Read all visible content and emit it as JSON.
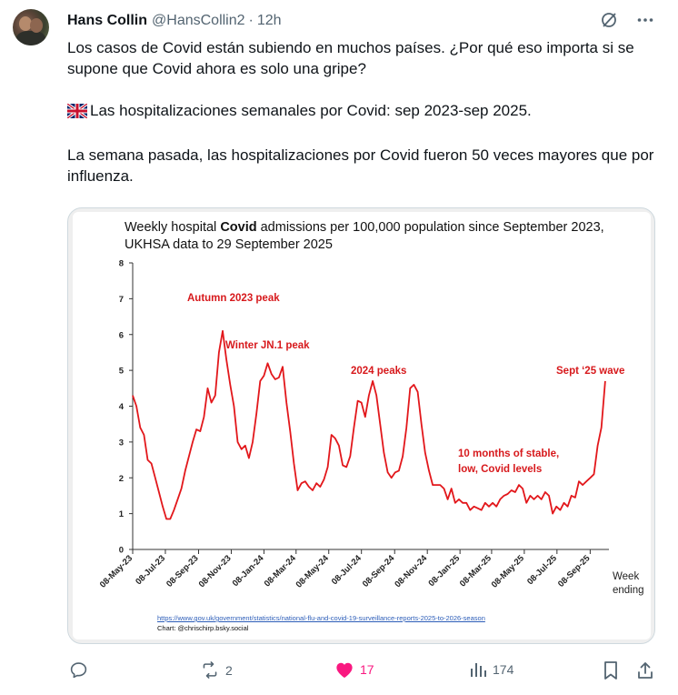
{
  "author": {
    "name": "Hans Collin",
    "handle": "@HansCollin2",
    "separator": "·",
    "time": "12h"
  },
  "tweet": {
    "line1": "Los casos de Covid están subiendo en muchos países. ¿Por qué eso importa si se supone que Covid ahora es solo una gripe?",
    "line2": "Las hospitalizaciones semanales por Covid: sep 2023-sep 2025.",
    "line3": "La semana pasada, las hospitalizaciones por Covid fueron 50 veces mayores que por influenza."
  },
  "chart_data": {
    "type": "line",
    "title_pre": "Weekly hospital ",
    "title_bold": "Covid",
    "title_post": " admissions per 100,000 population since September 2023, UKHSA data to 29 September 2025",
    "xlabel": "Week ending",
    "xlabel_line1": "Week",
    "xlabel_line2": "ending",
    "ylabel": "",
    "ylim": [
      0,
      8
    ],
    "y_ticks": [
      "0",
      "1",
      "2",
      "3",
      "4",
      "5",
      "6",
      "7",
      "8"
    ],
    "x_ticks": [
      "08-May-23",
      "08-Jul-23",
      "08-Sep-23",
      "08-Nov-23",
      "08-Jan-24",
      "08-Mar-24",
      "08-May-24",
      "08-Jul-24",
      "08-Sep-24",
      "08-Nov-24",
      "08-Jan-25",
      "08-Mar-25",
      "08-May-25",
      "08-Jul-25",
      "08-Sep-25"
    ],
    "x_start": "2023-05-08",
    "series": [
      {
        "color": "#e2171b",
        "points": [
          [
            "2023-05-08",
            4.3
          ],
          [
            "2023-05-15",
            4.0
          ],
          [
            "2023-05-22",
            3.4
          ],
          [
            "2023-05-29",
            3.2
          ],
          [
            "2023-06-05",
            2.5
          ],
          [
            "2023-06-12",
            2.4
          ],
          [
            "2023-06-19",
            2.0
          ],
          [
            "2023-06-26",
            1.6
          ],
          [
            "2023-07-03",
            1.2
          ],
          [
            "2023-07-10",
            0.85
          ],
          [
            "2023-07-17",
            0.85
          ],
          [
            "2023-07-24",
            1.1
          ],
          [
            "2023-07-31",
            1.4
          ],
          [
            "2023-08-07",
            1.7
          ],
          [
            "2023-08-14",
            2.2
          ],
          [
            "2023-08-21",
            2.6
          ],
          [
            "2023-08-28",
            3.0
          ],
          [
            "2023-09-04",
            3.35
          ],
          [
            "2023-09-11",
            3.3
          ],
          [
            "2023-09-18",
            3.7
          ],
          [
            "2023-09-25",
            4.5
          ],
          [
            "2023-10-02",
            4.1
          ],
          [
            "2023-10-09",
            4.3
          ],
          [
            "2023-10-16",
            5.5
          ],
          [
            "2023-10-23",
            6.1
          ],
          [
            "2023-10-30",
            5.3
          ],
          [
            "2023-11-06",
            4.6
          ],
          [
            "2023-11-13",
            4.0
          ],
          [
            "2023-11-20",
            3.0
          ],
          [
            "2023-11-27",
            2.8
          ],
          [
            "2023-12-04",
            2.9
          ],
          [
            "2023-12-11",
            2.55
          ],
          [
            "2023-12-18",
            3.0
          ],
          [
            "2023-12-25",
            3.8
          ],
          [
            "2024-01-01",
            4.7
          ],
          [
            "2024-01-08",
            4.85
          ],
          [
            "2024-01-15",
            5.2
          ],
          [
            "2024-01-22",
            4.9
          ],
          [
            "2024-01-29",
            4.75
          ],
          [
            "2024-02-05",
            4.8
          ],
          [
            "2024-02-12",
            5.1
          ],
          [
            "2024-02-19",
            4.1
          ],
          [
            "2024-02-26",
            3.3
          ],
          [
            "2024-03-04",
            2.4
          ],
          [
            "2024-03-11",
            1.65
          ],
          [
            "2024-03-18",
            1.85
          ],
          [
            "2024-03-25",
            1.9
          ],
          [
            "2024-04-01",
            1.75
          ],
          [
            "2024-04-08",
            1.65
          ],
          [
            "2024-04-15",
            1.85
          ],
          [
            "2024-04-22",
            1.75
          ],
          [
            "2024-04-29",
            1.95
          ],
          [
            "2024-05-06",
            2.3
          ],
          [
            "2024-05-13",
            3.2
          ],
          [
            "2024-05-20",
            3.1
          ],
          [
            "2024-05-27",
            2.9
          ],
          [
            "2024-06-03",
            2.35
          ],
          [
            "2024-06-10",
            2.3
          ],
          [
            "2024-06-17",
            2.6
          ],
          [
            "2024-06-24",
            3.4
          ],
          [
            "2024-07-01",
            4.15
          ],
          [
            "2024-07-08",
            4.1
          ],
          [
            "2024-07-15",
            3.7
          ],
          [
            "2024-07-22",
            4.3
          ],
          [
            "2024-07-29",
            4.7
          ],
          [
            "2024-08-05",
            4.3
          ],
          [
            "2024-08-12",
            3.5
          ],
          [
            "2024-08-19",
            2.7
          ],
          [
            "2024-08-26",
            2.15
          ],
          [
            "2024-09-02",
            2.0
          ],
          [
            "2024-09-09",
            2.15
          ],
          [
            "2024-09-16",
            2.2
          ],
          [
            "2024-09-23",
            2.6
          ],
          [
            "2024-09-30",
            3.4
          ],
          [
            "2024-10-07",
            4.5
          ],
          [
            "2024-10-14",
            4.6
          ],
          [
            "2024-10-21",
            4.4
          ],
          [
            "2024-10-28",
            3.5
          ],
          [
            "2024-11-04",
            2.7
          ],
          [
            "2024-11-11",
            2.2
          ],
          [
            "2024-11-18",
            1.8
          ],
          [
            "2024-11-25",
            1.8
          ],
          [
            "2024-12-02",
            1.8
          ],
          [
            "2024-12-09",
            1.7
          ],
          [
            "2024-12-16",
            1.4
          ],
          [
            "2024-12-23",
            1.7
          ],
          [
            "2024-12-30",
            1.3
          ],
          [
            "2025-01-06",
            1.4
          ],
          [
            "2025-01-13",
            1.3
          ],
          [
            "2025-01-20",
            1.3
          ],
          [
            "2025-01-27",
            1.1
          ],
          [
            "2025-02-03",
            1.2
          ],
          [
            "2025-02-10",
            1.15
          ],
          [
            "2025-02-17",
            1.1
          ],
          [
            "2025-02-24",
            1.3
          ],
          [
            "2025-03-03",
            1.2
          ],
          [
            "2025-03-10",
            1.3
          ],
          [
            "2025-03-17",
            1.2
          ],
          [
            "2025-03-24",
            1.4
          ],
          [
            "2025-03-31",
            1.5
          ],
          [
            "2025-04-07",
            1.55
          ],
          [
            "2025-04-14",
            1.65
          ],
          [
            "2025-04-21",
            1.6
          ],
          [
            "2025-04-28",
            1.8
          ],
          [
            "2025-05-05",
            1.7
          ],
          [
            "2025-05-12",
            1.3
          ],
          [
            "2025-05-19",
            1.5
          ],
          [
            "2025-05-26",
            1.4
          ],
          [
            "2025-06-02",
            1.5
          ],
          [
            "2025-06-09",
            1.4
          ],
          [
            "2025-06-16",
            1.6
          ],
          [
            "2025-06-23",
            1.5
          ],
          [
            "2025-06-30",
            1.0
          ],
          [
            "2025-07-07",
            1.2
          ],
          [
            "2025-07-14",
            1.1
          ],
          [
            "2025-07-21",
            1.3
          ],
          [
            "2025-07-28",
            1.2
          ],
          [
            "2025-08-04",
            1.5
          ],
          [
            "2025-08-11",
            1.45
          ],
          [
            "2025-08-18",
            1.9
          ],
          [
            "2025-08-25",
            1.8
          ],
          [
            "2025-09-01",
            1.9
          ],
          [
            "2025-09-08",
            2.0
          ],
          [
            "2025-09-15",
            2.1
          ],
          [
            "2025-09-22",
            2.9
          ],
          [
            "2025-09-29",
            3.4
          ],
          [
            "2025-10-06",
            4.7
          ]
        ]
      }
    ],
    "annotations": [
      {
        "text": "Autumn 2023 peak"
      },
      {
        "text": "Winter JN.1 peak"
      },
      {
        "text": "2024 peaks"
      },
      {
        "text": "Sept ‘25 wave"
      },
      {
        "text": "10 months of stable,"
      },
      {
        "text": "low, Covid levels"
      }
    ],
    "source_url": "https://www.gov.uk/government/statistics/national-flu-and-covid-19-surveillance-reports-2025-to-2026-season",
    "credit": "Chart: @chrischirp.bsky.social",
    "grid": false
  },
  "actions": {
    "reply_count": "",
    "retweet_count": "2",
    "like_count": "17",
    "views_count": "174"
  },
  "colors": {
    "accent_like": "#f91880",
    "muted": "#536471",
    "line": "#e2171b"
  },
  "icons": {
    "grok": "grok-icon",
    "more": "more-icon",
    "reply": "reply-icon",
    "retweet": "retweet-icon",
    "like": "heart-icon",
    "views": "views-icon",
    "bookmark": "bookmark-icon",
    "share": "share-icon",
    "flag": "uk-flag-icon"
  }
}
